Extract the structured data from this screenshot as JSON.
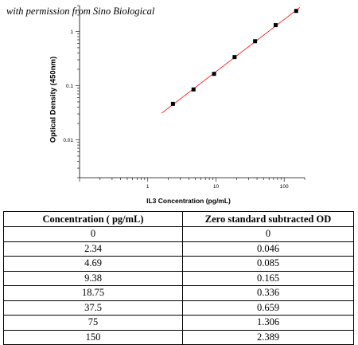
{
  "watermark": "with permission from Sino Biological",
  "chart_data": {
    "type": "scatter",
    "xlabel": "IL3 Concentration (pg/mL)",
    "ylabel": "Optical Density (450nm)",
    "x_scale": "log",
    "y_scale": "log",
    "xlim": [
      0.1,
      200
    ],
    "ylim": [
      0.002,
      3
    ],
    "x_ticks": [
      {
        "value": 1,
        "label": "1"
      },
      {
        "value": 10,
        "label": "10"
      },
      {
        "value": 100,
        "label": "100"
      }
    ],
    "y_ticks": [
      {
        "value": 0.01,
        "label": "0.01"
      },
      {
        "value": 0.1,
        "label": "0.1"
      },
      {
        "value": 1,
        "label": "1"
      }
    ],
    "grid": false,
    "series": [
      {
        "points": [
          {
            "x": 2.34,
            "y": 0.046
          },
          {
            "x": 4.69,
            "y": 0.085
          },
          {
            "x": 9.38,
            "y": 0.165
          },
          {
            "x": 18.75,
            "y": 0.336
          },
          {
            "x": 37.5,
            "y": 0.659
          },
          {
            "x": 75,
            "y": 1.306
          },
          {
            "x": 150,
            "y": 2.389
          }
        ],
        "marker_color": "#000000"
      }
    ],
    "fit_line": {
      "x_start": 1.6,
      "x_end": 170,
      "color": "#ff0000"
    }
  },
  "table": {
    "headers": [
      "Concentration ( pg/mL)",
      "Zero standard subtracted OD"
    ],
    "rows": [
      [
        "0",
        "0"
      ],
      [
        "2.34",
        "0.046"
      ],
      [
        "4.69",
        "0.085"
      ],
      [
        "9.38",
        "0.165"
      ],
      [
        "18.75",
        "0.336"
      ],
      [
        "37.5",
        "0.659"
      ],
      [
        "75",
        "1.306"
      ],
      [
        "150",
        "2.389"
      ]
    ]
  }
}
